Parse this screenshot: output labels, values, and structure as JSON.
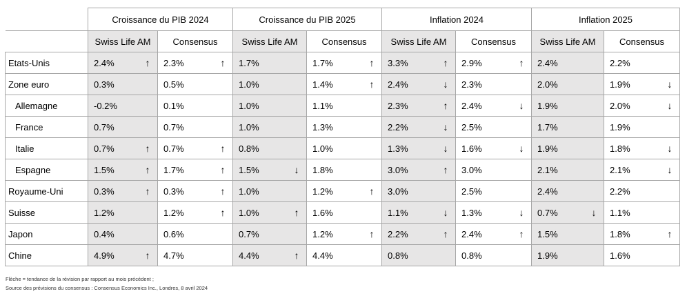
{
  "headers": {
    "groups": [
      "Croissance du PIB 2024",
      "Croissance du PIB 2025",
      "Inflation 2024",
      "Inflation 2025"
    ],
    "sub": [
      "Swiss Life AM",
      "Consensus"
    ]
  },
  "rows": [
    {
      "country": "Etats-Unis",
      "indent": false,
      "cells": [
        {
          "v": "2.4%",
          "a": "up"
        },
        {
          "v": "2.3%",
          "a": "up"
        },
        {
          "v": "1.7%",
          "a": ""
        },
        {
          "v": "1.7%",
          "a": "up"
        },
        {
          "v": "3.3%",
          "a": "up"
        },
        {
          "v": "2.9%",
          "a": "up"
        },
        {
          "v": "2.4%",
          "a": ""
        },
        {
          "v": "2.2%",
          "a": ""
        }
      ]
    },
    {
      "country": "Zone euro",
      "indent": false,
      "cells": [
        {
          "v": "0.3%",
          "a": ""
        },
        {
          "v": "0.5%",
          "a": ""
        },
        {
          "v": "1.0%",
          "a": ""
        },
        {
          "v": "1.4%",
          "a": "up"
        },
        {
          "v": "2.4%",
          "a": "down"
        },
        {
          "v": "2.3%",
          "a": ""
        },
        {
          "v": "2.0%",
          "a": ""
        },
        {
          "v": "1.9%",
          "a": "down"
        }
      ]
    },
    {
      "country": "Allemagne",
      "indent": true,
      "cells": [
        {
          "v": "-0.2%",
          "a": ""
        },
        {
          "v": "0.1%",
          "a": ""
        },
        {
          "v": "1.0%",
          "a": ""
        },
        {
          "v": "1.1%",
          "a": ""
        },
        {
          "v": "2.3%",
          "a": "up"
        },
        {
          "v": "2.4%",
          "a": "down"
        },
        {
          "v": "1.9%",
          "a": ""
        },
        {
          "v": "2.0%",
          "a": "down"
        }
      ]
    },
    {
      "country": "France",
      "indent": true,
      "cells": [
        {
          "v": "0.7%",
          "a": ""
        },
        {
          "v": "0.7%",
          "a": ""
        },
        {
          "v": "1.0%",
          "a": ""
        },
        {
          "v": "1.3%",
          "a": ""
        },
        {
          "v": "2.2%",
          "a": "down"
        },
        {
          "v": "2.5%",
          "a": ""
        },
        {
          "v": "1.7%",
          "a": ""
        },
        {
          "v": "1.9%",
          "a": ""
        }
      ]
    },
    {
      "country": "Italie",
      "indent": true,
      "cells": [
        {
          "v": "0.7%",
          "a": "up"
        },
        {
          "v": "0.7%",
          "a": "up"
        },
        {
          "v": "0.8%",
          "a": ""
        },
        {
          "v": "1.0%",
          "a": ""
        },
        {
          "v": "1.3%",
          "a": "down"
        },
        {
          "v": "1.6%",
          "a": "down"
        },
        {
          "v": "1.9%",
          "a": ""
        },
        {
          "v": "1.8%",
          "a": "down"
        }
      ]
    },
    {
      "country": "Espagne",
      "indent": true,
      "cells": [
        {
          "v": "1.5%",
          "a": "up"
        },
        {
          "v": "1.7%",
          "a": "up"
        },
        {
          "v": "1.5%",
          "a": "down"
        },
        {
          "v": "1.8%",
          "a": ""
        },
        {
          "v": "3.0%",
          "a": "up"
        },
        {
          "v": "3.0%",
          "a": ""
        },
        {
          "v": "2.1%",
          "a": ""
        },
        {
          "v": "2.1%",
          "a": "down"
        }
      ]
    },
    {
      "country": "Royaume-Uni",
      "indent": false,
      "cells": [
        {
          "v": "0.3%",
          "a": "up"
        },
        {
          "v": "0.3%",
          "a": "up"
        },
        {
          "v": "1.0%",
          "a": ""
        },
        {
          "v": "1.2%",
          "a": "up"
        },
        {
          "v": "3.0%",
          "a": ""
        },
        {
          "v": "2.5%",
          "a": ""
        },
        {
          "v": "2.4%",
          "a": ""
        },
        {
          "v": "2.2%",
          "a": ""
        }
      ]
    },
    {
      "country": "Suisse",
      "indent": false,
      "cells": [
        {
          "v": "1.2%",
          "a": ""
        },
        {
          "v": "1.2%",
          "a": "up"
        },
        {
          "v": "1.0%",
          "a": "up"
        },
        {
          "v": "1.6%",
          "a": ""
        },
        {
          "v": "1.1%",
          "a": "down"
        },
        {
          "v": "1.3%",
          "a": "down"
        },
        {
          "v": "0.7%",
          "a": "down"
        },
        {
          "v": "1.1%",
          "a": ""
        }
      ]
    },
    {
      "country": "Japon",
      "indent": false,
      "cells": [
        {
          "v": "0.4%",
          "a": ""
        },
        {
          "v": "0.6%",
          "a": ""
        },
        {
          "v": "0.7%",
          "a": ""
        },
        {
          "v": "1.2%",
          "a": "up"
        },
        {
          "v": "2.2%",
          "a": "up"
        },
        {
          "v": "2.4%",
          "a": "up"
        },
        {
          "v": "1.5%",
          "a": ""
        },
        {
          "v": "1.8%",
          "a": "up"
        }
      ]
    },
    {
      "country": "Chine",
      "indent": false,
      "cells": [
        {
          "v": "4.9%",
          "a": "up"
        },
        {
          "v": "4.7%",
          "a": ""
        },
        {
          "v": "4.4%",
          "a": "up"
        },
        {
          "v": "4.4%",
          "a": ""
        },
        {
          "v": "0.8%",
          "a": ""
        },
        {
          "v": "0.8%",
          "a": ""
        },
        {
          "v": "1.9%",
          "a": ""
        },
        {
          "v": "1.6%",
          "a": ""
        }
      ]
    }
  ],
  "notes": [
    "Flèche = tendance de la révision par rapport au mois précédent ;",
    "Source des prévisions du consensus : Consensus Economics Inc., Londres, 8 avril 2024"
  ],
  "icons": {
    "up": "arrow-up-icon",
    "down": "arrow-down-icon"
  },
  "colors": {
    "swiss_life_bg": "#e7e6e6",
    "border": "#a6a6a6"
  }
}
